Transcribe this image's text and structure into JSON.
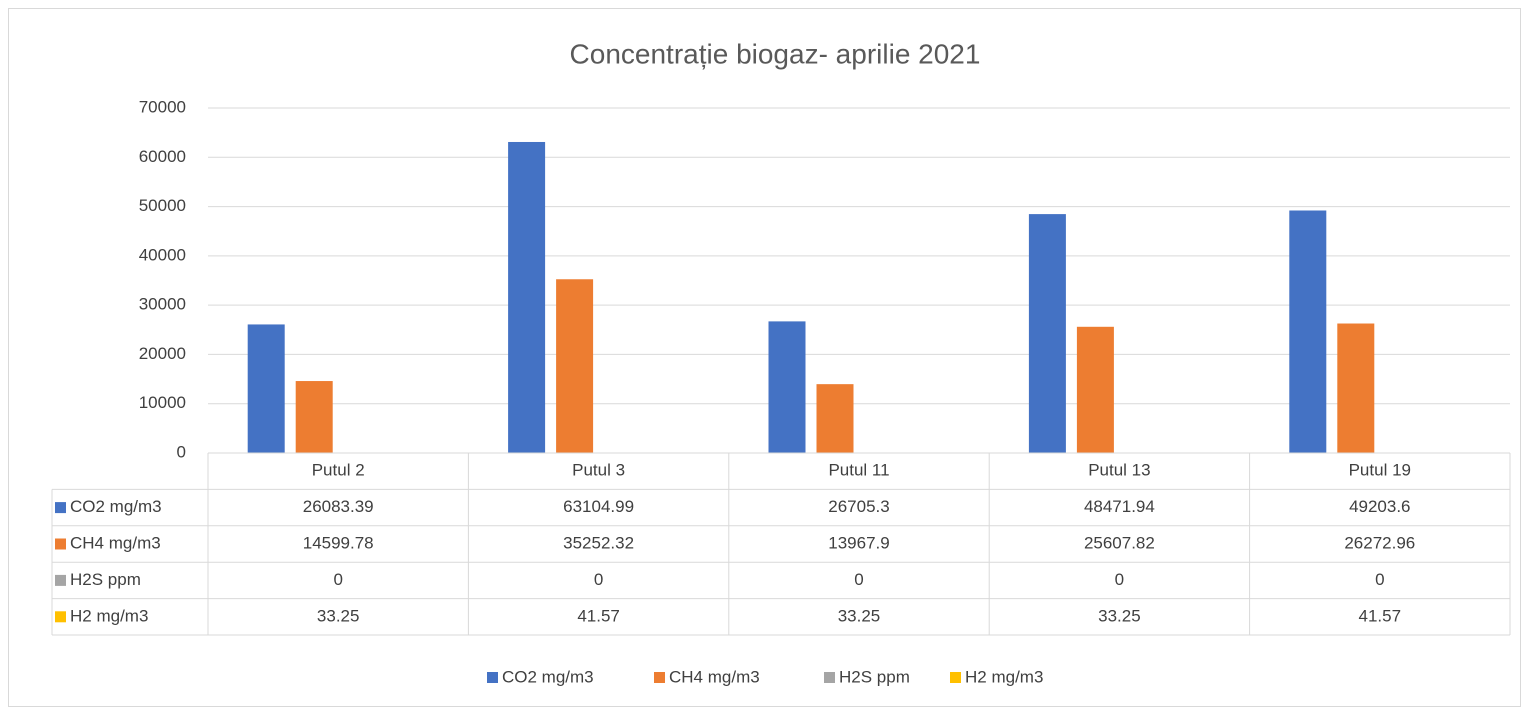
{
  "chart_data": {
    "type": "bar",
    "title": "Concentrație biogaz- aprilie 2021",
    "categories": [
      "Putul 2",
      "Putul 3",
      "Putul 11",
      "Putul 13",
      "Putul 19"
    ],
    "series": [
      {
        "name": "CO2 mg/m3",
        "color": "#4472c4",
        "values": [
          26083.39,
          63104.99,
          26705.3,
          48471.94,
          49203.6
        ]
      },
      {
        "name": "CH4 mg/m3",
        "color": "#ed7d31",
        "values": [
          14599.78,
          35252.32,
          13967.9,
          25607.82,
          26272.96
        ]
      },
      {
        "name": "H2S ppm",
        "color": "#a5a5a5",
        "values": [
          0,
          0,
          0,
          0,
          0
        ]
      },
      {
        "name": "H2 mg/m3",
        "color": "#ffc000",
        "values": [
          33.25,
          41.57,
          33.25,
          33.25,
          41.57
        ]
      }
    ],
    "ylim": [
      0,
      70000
    ],
    "yticks": [
      0,
      10000,
      20000,
      30000,
      40000,
      50000,
      60000,
      70000
    ],
    "grid": true,
    "legend": "bottom",
    "data_table": true
  }
}
